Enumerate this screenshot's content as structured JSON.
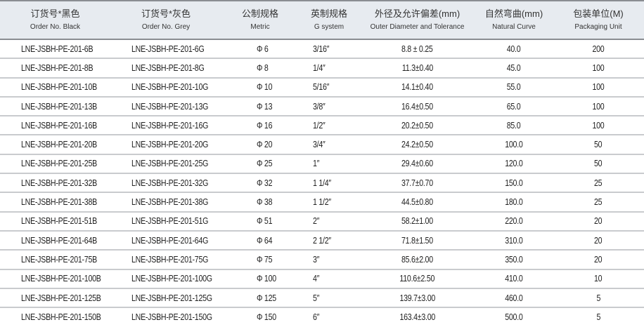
{
  "headers": [
    {
      "zh": "订货号*黑色",
      "en": "Order No. Black"
    },
    {
      "zh": "订货号*灰色",
      "en": "Order No. Grey"
    },
    {
      "zh": "公制规格",
      "en": "Metric"
    },
    {
      "zh": "英制规格",
      "en": "G system"
    },
    {
      "zh": "外径及允许偏差(mm)",
      "en": "Outer Diameter and Tolerance"
    },
    {
      "zh": "自然弯曲(mm)",
      "en": "Natural Curve"
    },
    {
      "zh": "包装单位(M)",
      "en": "Packaging Unit"
    }
  ],
  "rows": [
    [
      "LNE-JSBH-PE-201-6B",
      "LNE-JSBH-PE-201-6G",
      "Φ 6",
      "3/16″",
      "8.8 ± 0.25",
      "40.0",
      "200"
    ],
    [
      "LNE-JSBH-PE-201-8B",
      "LNE-JSBH-PE-201-8G",
      "Φ 8",
      "1/4″",
      "11.3±0.40",
      "45.0",
      "100"
    ],
    [
      "LNE-JSBH-PE-201-10B",
      "LNE-JSBH-PE-201-10G",
      "Φ 10",
      "5/16″",
      "14.1±0.40",
      "55.0",
      "100"
    ],
    [
      "LNE-JSBH-PE-201-13B",
      "LNE-JSBH-PE-201-13G",
      "Φ 13",
      "3/8″",
      "16.4±0.50",
      "65.0",
      "100"
    ],
    [
      "LNE-JSBH-PE-201-16B",
      "LNE-JSBH-PE-201-16G",
      "Φ 16",
      "1/2″",
      "20.2±0.50",
      "85.0",
      "100"
    ],
    [
      "LNE-JSBH-PE-201-20B",
      "LNE-JSBH-PE-201-20G",
      "Φ 20",
      "3/4″",
      "24.2±0.50",
      "100.0",
      "50"
    ],
    [
      "LNE-JSBH-PE-201-25B",
      "LNE-JSBH-PE-201-25G",
      "Φ 25",
      "1″",
      "29.4±0.60",
      "120.0",
      "50"
    ],
    [
      "LNE-JSBH-PE-201-32B",
      "LNE-JSBH-PE-201-32G",
      "Φ 32",
      "1 1/4″",
      "37.7±0.70",
      "150.0",
      "25"
    ],
    [
      "LNE-JSBH-PE-201-38B",
      "LNE-JSBH-PE-201-38G",
      "Φ 38",
      "1 1/2″",
      "44.5±0.80",
      "180.0",
      "25"
    ],
    [
      "LNE-JSBH-PE-201-51B",
      "LNE-JSBH-PE-201-51G",
      "Φ 51",
      "2″",
      "58.2±1.00",
      "220.0",
      "20"
    ],
    [
      "LNE-JSBH-PE-201-64B",
      "LNE-JSBH-PE-201-64G",
      "Φ 64",
      "2 1/2″",
      "71.8±1.50",
      "310.0",
      "20"
    ],
    [
      "LNE-JSBH-PE-201-75B",
      "LNE-JSBH-PE-201-75G",
      "Φ 75",
      "3″",
      "85.6±2.00",
      "350.0",
      "20"
    ],
    [
      "LNE-JSBH-PE-201-100B",
      "LNE-JSBH-PE-201-100G",
      "Φ 100",
      "4″",
      "110.6±2.50",
      "410.0",
      "10"
    ],
    [
      "LNE-JSBH-PE-201-125B",
      "LNE-JSBH-PE-201-125G",
      "Φ 125",
      "5″",
      "139.7±3.00",
      "460.0",
      "5"
    ],
    [
      "LNE-JSBH-PE-201-150B",
      "LNE-JSBH-PE-201-150G",
      "Φ 150",
      "6″",
      "163.4±3.00",
      "500.0",
      "5"
    ]
  ]
}
